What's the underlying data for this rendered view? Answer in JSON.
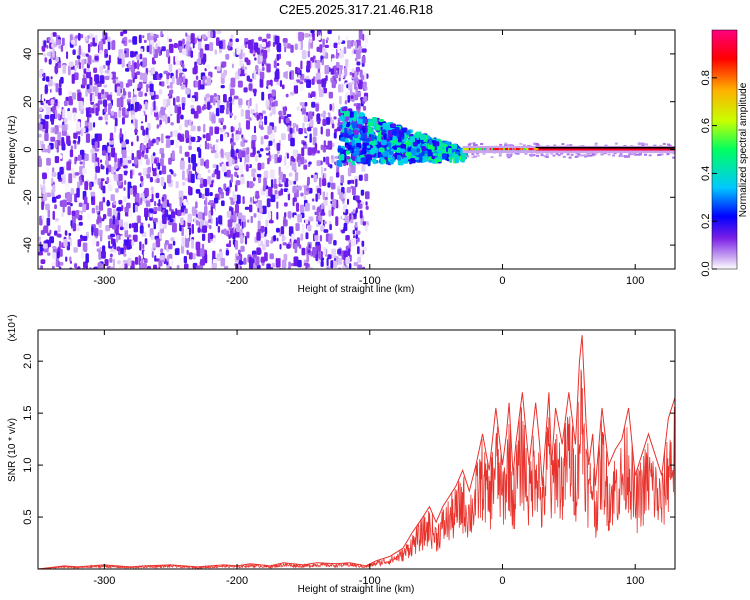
{
  "figure": {
    "title": "C2E5.2025.317.21.46.R18"
  },
  "chart_data": [
    {
      "type": "heatmap",
      "xlabel": "Height of straight line (km)",
      "ylabel": "Frequency (Hz)",
      "xlim": [
        -350,
        130
      ],
      "ylim": [
        -50,
        50
      ],
      "xticks": [
        -300,
        -200,
        -100,
        0,
        100
      ],
      "xticklabels": [
        "-300",
        "-200",
        "-100",
        "0",
        "100"
      ],
      "yticks": [
        -40,
        -20,
        0,
        20,
        40
      ],
      "yticklabels": [
        "-40",
        "-20",
        "0",
        "20",
        "40"
      ],
      "colorbar": {
        "label": "Normalized spectral amplitude",
        "range": [
          0,
          1
        ],
        "ticks": [
          0.0,
          0.2,
          0.4,
          0.6,
          0.8
        ],
        "ticklabels": [
          "0.0",
          "0.2",
          "0.4",
          "0.6",
          "0.8"
        ],
        "colormap": [
          "#ffffff",
          "#c9a6f2",
          "#7a1fe6",
          "#0000ff",
          "#00c8ff",
          "#00ff60",
          "#c8ff00",
          "#ffb000",
          "#ff0000",
          "#ff0080"
        ]
      },
      "regions": [
        {
          "x": [
            -350,
            -103
          ],
          "freq": [
            -50,
            50
          ],
          "description": "speckled noise",
          "amplitude": [
            0.0,
            0.18
          ]
        },
        {
          "x": [
            -125,
            -30
          ],
          "freq": [
            -10,
            15
          ],
          "description": "broadening signal",
          "amplitude": [
            0.1,
            0.45
          ]
        },
        {
          "x": [
            -30,
            130
          ],
          "freq": [
            -1.5,
            1.5
          ],
          "description": "narrow carrier line",
          "amplitude": [
            0.4,
            1.0
          ]
        }
      ],
      "grid": false
    },
    {
      "type": "line",
      "xlabel": "Height of straight line (km)",
      "ylabel": "SNR (10 * v/v)",
      "yscale_label": "(x10⁴)",
      "xlim": [
        -350,
        130
      ],
      "ylim": [
        0,
        2.3
      ],
      "xticks": [
        -300,
        -200,
        -100,
        0,
        100
      ],
      "xticklabels": [
        "-300",
        "-200",
        "-100",
        "0",
        "100"
      ],
      "yticks": [
        0.5,
        1.0,
        1.5,
        2.0
      ],
      "yticklabels": [
        "0.5",
        "1.0",
        "1.5",
        "2.0"
      ],
      "color": "#e8322c",
      "grid": false,
      "x": [
        -350,
        -330,
        -320,
        -300,
        -280,
        -270,
        -250,
        -230,
        -210,
        -200,
        -190,
        -175,
        -165,
        -150,
        -140,
        -125,
        -115,
        -103,
        -95,
        -85,
        -75,
        -68,
        -60,
        -55,
        -50,
        -45,
        -40,
        -35,
        -30,
        -25,
        -20,
        -15,
        -10,
        -5,
        0,
        3,
        5,
        8,
        10,
        15,
        20,
        25,
        28,
        30,
        35,
        37,
        40,
        45,
        50,
        55,
        58,
        60,
        63,
        65,
        68,
        70,
        75,
        80,
        85,
        90,
        95,
        100,
        105,
        110,
        115,
        120,
        125,
        130
      ],
      "y": [
        0.0,
        0.03,
        0.02,
        0.04,
        0.02,
        0.03,
        0.04,
        0.02,
        0.04,
        0.03,
        0.05,
        0.03,
        0.06,
        0.04,
        0.06,
        0.05,
        0.06,
        0.03,
        0.08,
        0.12,
        0.2,
        0.35,
        0.5,
        0.6,
        0.45,
        0.6,
        0.7,
        0.8,
        0.95,
        0.75,
        1.0,
        1.3,
        0.95,
        1.55,
        1.0,
        1.3,
        1.6,
        0.9,
        1.2,
        1.7,
        1.0,
        1.6,
        1.2,
        0.8,
        1.7,
        1.0,
        1.55,
        1.2,
        1.7,
        1.2,
        2.0,
        2.25,
        1.4,
        1.0,
        1.3,
        0.8,
        1.55,
        1.0,
        1.15,
        1.25,
        1.55,
        0.9,
        1.1,
        1.3,
        1.1,
        0.9,
        1.45,
        1.65
      ]
    }
  ]
}
